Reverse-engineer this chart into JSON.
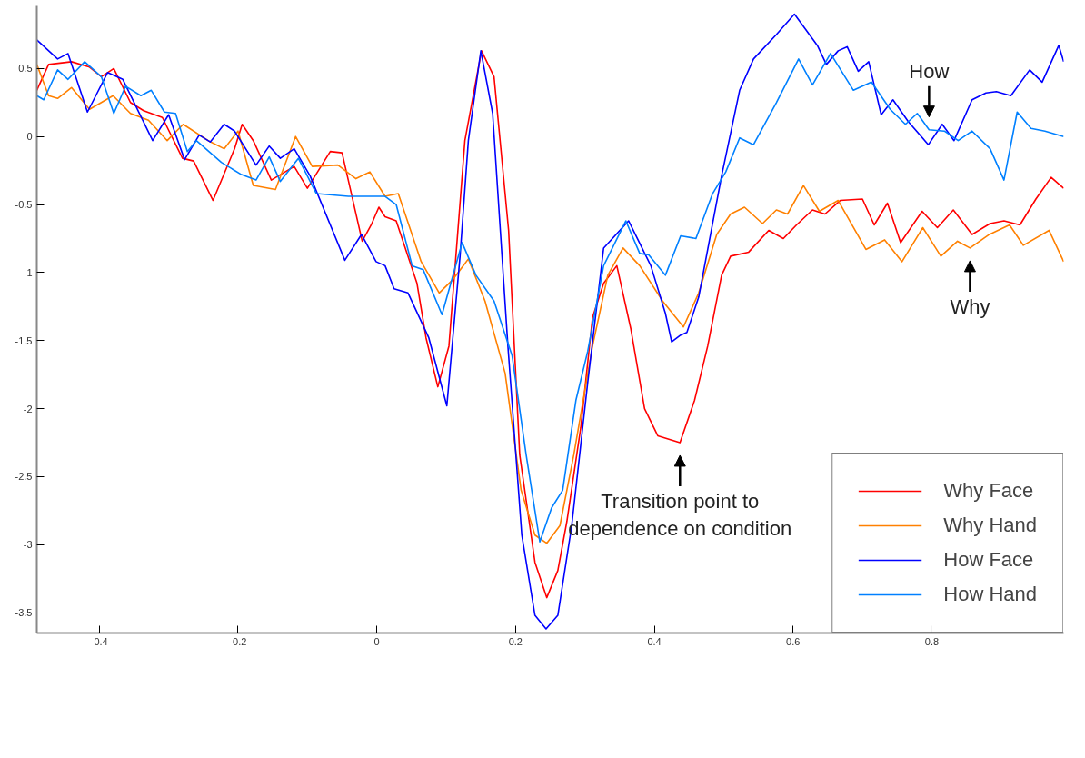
{
  "chart_data": {
    "type": "line",
    "xlim": [
      -0.49,
      0.99
    ],
    "ylim": [
      -3.65,
      0.96
    ],
    "xticks": [
      -0.4,
      -0.2,
      0,
      0.2,
      0.4,
      0.6,
      0.8
    ],
    "yticks": [
      -3.5,
      -3,
      -2.5,
      -2,
      -1.5,
      -1,
      -0.5,
      0,
      0.5
    ],
    "grid": false,
    "legend": "bottom right",
    "marker": "none",
    "line_style": "solid",
    "series": [
      {
        "name": "Why Face",
        "color": "#ff0000",
        "x": [
          -0.49,
          -0.473,
          -0.44,
          -0.414,
          -0.397,
          -0.379,
          -0.355,
          -0.336,
          -0.309,
          -0.28,
          -0.264,
          -0.236,
          -0.205,
          -0.194,
          -0.178,
          -0.152,
          -0.119,
          -0.1,
          -0.067,
          -0.05,
          -0.021,
          -0.008,
          0.003,
          0.012,
          0.028,
          0.058,
          0.071,
          0.088,
          0.104,
          0.127,
          0.151,
          0.169,
          0.19,
          0.206,
          0.228,
          0.245,
          0.261,
          0.274,
          0.294,
          0.311,
          0.327,
          0.346,
          0.366,
          0.386,
          0.405,
          0.437,
          0.458,
          0.477,
          0.497,
          0.51,
          0.536,
          0.565,
          0.586,
          0.605,
          0.628,
          0.646,
          0.668,
          0.7,
          0.717,
          0.736,
          0.755,
          0.786,
          0.808,
          0.831,
          0.858,
          0.884,
          0.904,
          0.927,
          0.95,
          0.972,
          0.99
        ],
        "values": [
          0.34,
          0.53,
          0.55,
          0.51,
          0.44,
          0.5,
          0.25,
          0.19,
          0.14,
          -0.16,
          -0.18,
          -0.47,
          -0.09,
          0.09,
          -0.03,
          -0.32,
          -0.22,
          -0.38,
          -0.11,
          -0.12,
          -0.77,
          -0.65,
          -0.52,
          -0.59,
          -0.62,
          -1.08,
          -1.48,
          -1.84,
          -1.54,
          -0.03,
          0.63,
          0.44,
          -0.69,
          -2.34,
          -3.13,
          -3.39,
          -3.19,
          -2.83,
          -2.14,
          -1.33,
          -1.08,
          -0.95,
          -1.41,
          -2.0,
          -2.2,
          -2.25,
          -1.94,
          -1.54,
          -1.02,
          -0.88,
          -0.85,
          -0.69,
          -0.75,
          -0.65,
          -0.54,
          -0.57,
          -0.47,
          -0.46,
          -0.65,
          -0.49,
          -0.78,
          -0.55,
          -0.67,
          -0.54,
          -0.72,
          -0.64,
          -0.62,
          -0.65,
          -0.46,
          -0.3,
          -0.38
        ]
      },
      {
        "name": "Why Hand",
        "color": "#ff8000",
        "x": [
          -0.49,
          -0.473,
          -0.46,
          -0.44,
          -0.414,
          -0.38,
          -0.355,
          -0.329,
          -0.302,
          -0.279,
          -0.243,
          -0.22,
          -0.2,
          -0.178,
          -0.146,
          -0.117,
          -0.093,
          -0.056,
          -0.03,
          -0.01,
          0.012,
          0.031,
          0.064,
          0.09,
          0.11,
          0.132,
          0.156,
          0.185,
          0.208,
          0.228,
          0.245,
          0.264,
          0.284,
          0.311,
          0.333,
          0.355,
          0.379,
          0.412,
          0.442,
          0.464,
          0.49,
          0.51,
          0.53,
          0.556,
          0.576,
          0.592,
          0.615,
          0.638,
          0.665,
          0.705,
          0.732,
          0.757,
          0.787,
          0.813,
          0.837,
          0.855,
          0.883,
          0.912,
          0.932,
          0.969,
          0.99
        ],
        "values": [
          0.53,
          0.3,
          0.28,
          0.36,
          0.2,
          0.3,
          0.17,
          0.12,
          -0.03,
          0.09,
          -0.03,
          -0.09,
          0.04,
          -0.36,
          -0.39,
          0.0,
          -0.22,
          -0.21,
          -0.31,
          -0.26,
          -0.44,
          -0.42,
          -0.92,
          -1.15,
          -1.05,
          -0.9,
          -1.21,
          -1.74,
          -2.6,
          -2.93,
          -2.99,
          -2.86,
          -2.34,
          -1.54,
          -1.02,
          -0.82,
          -0.95,
          -1.21,
          -1.4,
          -1.15,
          -0.72,
          -0.57,
          -0.52,
          -0.64,
          -0.54,
          -0.57,
          -0.36,
          -0.55,
          -0.47,
          -0.83,
          -0.76,
          -0.92,
          -0.67,
          -0.88,
          -0.77,
          -0.82,
          -0.72,
          -0.65,
          -0.8,
          -0.69,
          -0.92
        ]
      },
      {
        "name": "How Face",
        "color": "#0000ff",
        "x": [
          -0.49,
          -0.46,
          -0.445,
          -0.417,
          -0.388,
          -0.366,
          -0.323,
          -0.3,
          -0.277,
          -0.256,
          -0.24,
          -0.22,
          -0.205,
          -0.174,
          -0.155,
          -0.139,
          -0.119,
          -0.096,
          -0.046,
          -0.022,
          -0.001,
          0.012,
          0.025,
          0.045,
          0.075,
          0.101,
          0.12,
          0.132,
          0.15,
          0.167,
          0.189,
          0.209,
          0.228,
          0.244,
          0.261,
          0.281,
          0.304,
          0.327,
          0.363,
          0.395,
          0.416,
          0.425,
          0.438,
          0.447,
          0.464,
          0.497,
          0.523,
          0.543,
          0.576,
          0.602,
          0.635,
          0.648,
          0.665,
          0.678,
          0.694,
          0.709,
          0.727,
          0.744,
          0.766,
          0.795,
          0.815,
          0.832,
          0.858,
          0.878,
          0.893,
          0.914,
          0.941,
          0.959,
          0.983,
          0.99
        ],
        "values": [
          0.71,
          0.57,
          0.61,
          0.18,
          0.47,
          0.42,
          -0.03,
          0.16,
          -0.17,
          0.01,
          -0.04,
          0.09,
          0.04,
          -0.21,
          -0.07,
          -0.16,
          -0.09,
          -0.29,
          -0.91,
          -0.72,
          -0.92,
          -0.95,
          -1.12,
          -1.15,
          -1.48,
          -1.98,
          -0.88,
          -0.03,
          0.63,
          0.17,
          -1.54,
          -2.93,
          -3.52,
          -3.62,
          -3.52,
          -2.86,
          -1.81,
          -0.82,
          -0.62,
          -0.95,
          -1.3,
          -1.51,
          -1.46,
          -1.44,
          -1.18,
          -0.29,
          0.34,
          0.57,
          0.75,
          0.9,
          0.67,
          0.53,
          0.63,
          0.66,
          0.48,
          0.55,
          0.16,
          0.27,
          0.11,
          -0.06,
          0.09,
          -0.03,
          0.27,
          0.32,
          0.33,
          0.3,
          0.49,
          0.4,
          0.67,
          0.55
        ]
      },
      {
        "name": "How Hand",
        "color": "#0080ff",
        "x": [
          -0.49,
          -0.48,
          -0.46,
          -0.445,
          -0.421,
          -0.397,
          -0.379,
          -0.362,
          -0.34,
          -0.325,
          -0.306,
          -0.29,
          -0.273,
          -0.26,
          -0.224,
          -0.195,
          -0.174,
          -0.155,
          -0.139,
          -0.113,
          -0.087,
          -0.041,
          -0.008,
          0.012,
          0.028,
          0.051,
          0.067,
          0.094,
          0.123,
          0.143,
          0.169,
          0.195,
          0.215,
          0.235,
          0.252,
          0.268,
          0.287,
          0.304,
          0.327,
          0.359,
          0.379,
          0.392,
          0.416,
          0.438,
          0.46,
          0.484,
          0.503,
          0.523,
          0.543,
          0.576,
          0.608,
          0.628,
          0.654,
          0.687,
          0.713,
          0.74,
          0.762,
          0.779,
          0.796,
          0.818,
          0.838,
          0.858,
          0.884,
          0.904,
          0.923,
          0.943,
          0.963,
          0.99
        ],
        "values": [
          0.3,
          0.27,
          0.49,
          0.42,
          0.55,
          0.44,
          0.17,
          0.37,
          0.3,
          0.34,
          0.18,
          0.17,
          -0.11,
          -0.03,
          -0.19,
          -0.28,
          -0.32,
          -0.15,
          -0.33,
          -0.16,
          -0.42,
          -0.44,
          -0.44,
          -0.44,
          -0.5,
          -0.95,
          -0.98,
          -1.31,
          -0.78,
          -1.02,
          -1.21,
          -1.61,
          -2.33,
          -2.98,
          -2.73,
          -2.6,
          -1.94,
          -1.58,
          -0.95,
          -0.62,
          -0.86,
          -0.87,
          -1.02,
          -0.73,
          -0.75,
          -0.42,
          -0.26,
          -0.01,
          -0.06,
          0.25,
          0.57,
          0.38,
          0.61,
          0.34,
          0.4,
          0.2,
          0.09,
          0.17,
          0.05,
          0.04,
          -0.03,
          0.04,
          -0.09,
          -0.32,
          0.18,
          0.06,
          0.04,
          0.0
        ]
      }
    ],
    "annotations": [
      {
        "text": "How",
        "x": 0.796,
        "y": 0.05
      },
      {
        "text": "Why",
        "x": 0.855,
        "y": -0.82
      },
      {
        "text": "Transition point to\ndependence on condition",
        "x": 0.437,
        "y": -2.25
      }
    ]
  }
}
